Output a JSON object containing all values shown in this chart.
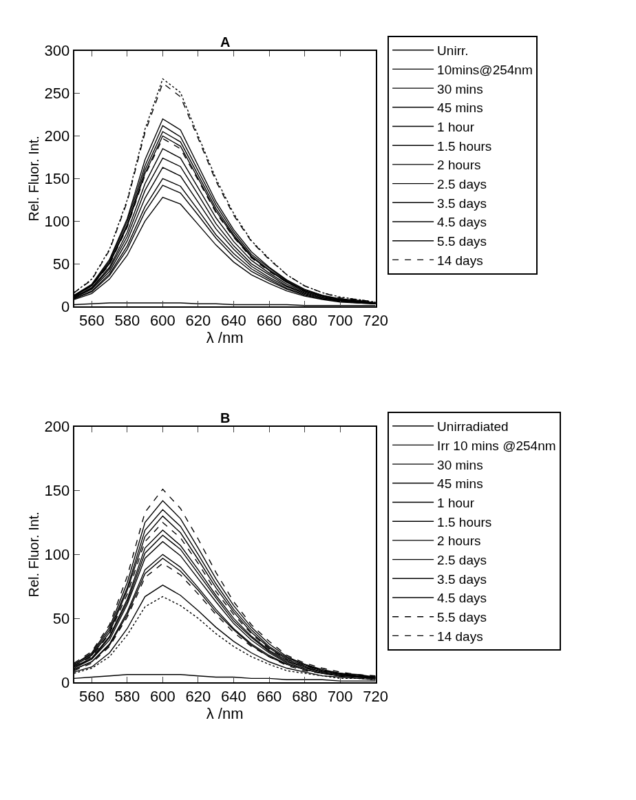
{
  "chart_data": [
    {
      "type": "line",
      "title": "A",
      "xlabel": "λ /nm",
      "ylabel": "Rel. Fluor. Int.",
      "x": [
        550,
        560,
        570,
        580,
        590,
        600,
        610,
        620,
        630,
        640,
        650,
        660,
        670,
        680,
        690,
        700,
        710,
        720
      ],
      "xlim": [
        550,
        720
      ],
      "xticks": [
        560,
        580,
        600,
        620,
        640,
        660,
        680,
        700,
        720
      ],
      "ylim": [
        0,
        300
      ],
      "yticks": [
        0,
        50,
        100,
        150,
        200,
        250,
        300
      ],
      "legend": "right",
      "series": [
        {
          "name": "Unirr.",
          "color": "#000000",
          "line_style": "solid",
          "values": [
            2,
            3,
            4,
            4,
            4,
            4,
            4,
            3,
            3,
            2,
            2,
            2,
            2,
            1,
            1,
            1,
            1,
            1
          ]
        },
        {
          "name": "10mins@254nm",
          "color": "#000000",
          "line_style": "solid",
          "values": [
            8,
            15,
            32,
            60,
            100,
            128,
            120,
            96,
            72,
            52,
            37,
            27,
            18,
            12,
            8,
            5,
            4,
            3
          ]
        },
        {
          "name": "30 mins",
          "color": "#000000",
          "line_style": "solid",
          "values": [
            9,
            17,
            36,
            67,
            111,
            142,
            133,
            107,
            80,
            58,
            41,
            30,
            20,
            13,
            9,
            6,
            4,
            3
          ]
        },
        {
          "name": "45 mins",
          "color": "#000000",
          "line_style": "solid",
          "values": [
            9,
            18,
            38,
            71,
            117,
            150,
            141,
            113,
            84,
            62,
            44,
            32,
            21,
            14,
            9,
            6,
            5,
            3
          ]
        },
        {
          "name": "1 hour",
          "color": "#000000",
          "line_style": "solid",
          "values": [
            10,
            20,
            41,
            77,
            127,
            163,
            153,
            122,
            91,
            67,
            47,
            34,
            23,
            15,
            10,
            7,
            5,
            3
          ]
        },
        {
          "name": "1.5 hours",
          "color": "#000000",
          "line_style": "solid",
          "values": [
            10,
            21,
            44,
            82,
            136,
            174,
            164,
            131,
            97,
            71,
            50,
            37,
            24,
            16,
            10,
            7,
            5,
            3
          ]
        },
        {
          "name": "2 hours",
          "color": "#000000",
          "line_style": "solid",
          "values": [
            11,
            22,
            46,
            87,
            144,
            185,
            174,
            139,
            104,
            76,
            54,
            39,
            26,
            17,
            11,
            7,
            6,
            4
          ]
        },
        {
          "name": "2.5 days",
          "color": "#000000",
          "line_style": "solid",
          "values": [
            12,
            24,
            50,
            94,
            156,
            200,
            188,
            150,
            112,
            82,
            58,
            42,
            28,
            18,
            12,
            8,
            6,
            4
          ]
        },
        {
          "name": "3.5 days",
          "color": "#000000",
          "line_style": "solid",
          "values": [
            12,
            25,
            51,
            96,
            160,
            205,
            193,
            154,
            115,
            84,
            59,
            43,
            29,
            18,
            12,
            8,
            6,
            4
          ]
        },
        {
          "name": "4.5 days",
          "color": "#000000",
          "line_style": "solid",
          "values": [
            13,
            25,
            53,
            100,
            165,
            212,
            199,
            159,
            119,
            87,
            61,
            45,
            30,
            19,
            13,
            8,
            6,
            4
          ]
        },
        {
          "name": "5.5 days",
          "color": "#000000",
          "line_style": "solid",
          "values": [
            13,
            26,
            55,
            103,
            172,
            220,
            207,
            165,
            123,
            90,
            64,
            46,
            31,
            20,
            13,
            9,
            7,
            4
          ]
        },
        {
          "color": "#000000",
          "line_style": "dashed",
          "values": [
            12,
            24,
            49,
            93,
            154,
            197,
            185,
            148,
            110,
            81,
            57,
            41,
            28,
            18,
            12,
            8,
            6,
            4
          ]
        },
        {
          "name": "14 days",
          "color": "#000000",
          "line_style": "dashed",
          "values": [
            16,
            31,
            66,
            123,
            204,
            262,
            246,
            197,
            147,
            107,
            76,
            55,
            37,
            24,
            16,
            10,
            8,
            5
          ]
        },
        {
          "color": "#000000",
          "line_style": "dotted",
          "values": [
            16,
            32,
            67,
            125,
            208,
            267,
            251,
            200,
            150,
            109,
            77,
            56,
            37,
            24,
            16,
            11,
            8,
            5
          ]
        }
      ]
    },
    {
      "type": "line",
      "title": "B",
      "xlabel": "λ /nm",
      "ylabel": "Rel. Fluor. Int.",
      "x": [
        550,
        560,
        570,
        580,
        590,
        600,
        610,
        620,
        630,
        640,
        650,
        660,
        670,
        680,
        690,
        700,
        710,
        720
      ],
      "xlim": [
        550,
        720
      ],
      "xticks": [
        560,
        580,
        600,
        620,
        640,
        660,
        680,
        700,
        720
      ],
      "ylim": [
        0,
        200
      ],
      "yticks": [
        0,
        50,
        100,
        150,
        200
      ],
      "legend": "right",
      "series": [
        {
          "name": "Unirradiated",
          "color": "#000000",
          "line_style": "solid",
          "values": [
            3,
            4,
            5,
            6,
            6,
            6,
            6,
            5,
            4,
            4,
            3,
            3,
            2,
            2,
            2,
            1,
            1,
            1
          ]
        },
        {
          "name": "Irr 10 mins @254nm",
          "color": "#000000",
          "line_style": "solid",
          "values": [
            8,
            12,
            23,
            42,
            67,
            76,
            68,
            56,
            43,
            32,
            23,
            16,
            11,
            8,
            5,
            4,
            3,
            2
          ]
        },
        {
          "name": "30 mins",
          "color": "#000000",
          "line_style": "solid",
          "values": [
            10,
            16,
            30,
            55,
            88,
            100,
            90,
            74,
            57,
            42,
            30,
            21,
            14,
            10,
            7,
            5,
            4,
            3
          ]
        },
        {
          "name": "45 mins",
          "color": "#000000",
          "line_style": "solid",
          "values": [
            11,
            18,
            33,
            61,
            97,
            110,
            99,
            81,
            63,
            46,
            33,
            23,
            15,
            11,
            8,
            6,
            4,
            3
          ]
        },
        {
          "name": "1 hour",
          "color": "#000000",
          "line_style": "solid",
          "values": [
            12,
            19,
            36,
            65,
            105,
            119,
            107,
            88,
            68,
            50,
            36,
            25,
            17,
            12,
            8,
            6,
            5,
            4
          ]
        },
        {
          "name": "1.5 hours",
          "color": "#000000",
          "line_style": "solid",
          "values": [
            13,
            21,
            39,
            72,
            114,
            130,
            117,
            96,
            74,
            55,
            39,
            27,
            18,
            13,
            9,
            7,
            5,
            4
          ]
        },
        {
          "name": "2 hours",
          "color": "#000000",
          "line_style": "solid",
          "values": [
            14,
            22,
            41,
            74,
            119,
            135,
            122,
            100,
            77,
            57,
            41,
            28,
            19,
            14,
            9,
            7,
            5,
            4
          ]
        },
        {
          "name": "2.5 days",
          "color": "#000000",
          "line_style": "solid",
          "values": [
            12,
            18,
            35,
            63,
            101,
            115,
            104,
            85,
            66,
            48,
            35,
            24,
            16,
            12,
            8,
            6,
            5,
            3
          ]
        },
        {
          "name": "3.5 days",
          "color": "#000000",
          "line_style": "solid",
          "values": [
            14,
            23,
            43,
            78,
            125,
            142,
            128,
            105,
            81,
            60,
            43,
            30,
            20,
            14,
            10,
            7,
            6,
            4
          ]
        },
        {
          "name": "4.5 days",
          "color": "#000000",
          "line_style": "solid",
          "values": [
            10,
            16,
            29,
            53,
            85,
            97,
            87,
            72,
            55,
            41,
            29,
            20,
            14,
            10,
            7,
            5,
            4,
            3
          ]
        },
        {
          "name": "5.5 days",
          "color": "#000000",
          "line_style": "dashed",
          "values": [
            15,
            24,
            45,
            83,
            133,
            151,
            136,
            112,
            86,
            63,
            45,
            32,
            21,
            15,
            11,
            8,
            6,
            5
          ]
        },
        {
          "color": "#000000",
          "line_style": "dashed",
          "values": [
            9,
            15,
            28,
            51,
            82,
            93,
            84,
            69,
            53,
            39,
            28,
            20,
            13,
            9,
            7,
            5,
            4,
            3
          ]
        },
        {
          "name": "14 days",
          "color": "#000000",
          "line_style": "dashed",
          "values": [
            13,
            20,
            38,
            69,
            110,
            125,
            113,
            93,
            71,
            53,
            38,
            26,
            18,
            13,
            9,
            6,
            5,
            4
          ]
        },
        {
          "color": "#000000",
          "line_style": "dotted",
          "values": [
            7,
            11,
            20,
            37,
            59,
            67,
            60,
            50,
            38,
            28,
            20,
            14,
            9,
            7,
            5,
            3,
            3,
            2
          ]
        }
      ]
    }
  ]
}
